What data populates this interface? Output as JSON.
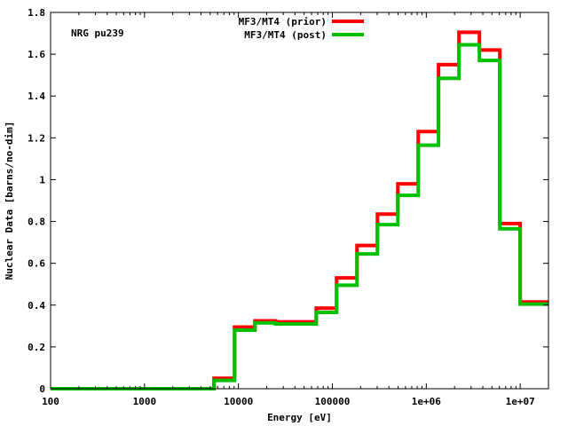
{
  "chart_data": {
    "type": "line",
    "step": true,
    "annotation": "NRG pu239",
    "xlabel": "Energy [eV]",
    "ylabel": "Nuclear Data [barns/no-dim]",
    "xscale": "log",
    "xlim": [
      100,
      20000000
    ],
    "ylim": [
      0,
      1.8
    ],
    "grid": false,
    "legend_position": "top-center",
    "xtick_labels": [
      "100",
      "1000",
      "10000",
      "100000",
      "1e+06",
      "1e+07"
    ],
    "xtick_values": [
      100,
      1000,
      10000,
      100000,
      1000000,
      10000000
    ],
    "ytick_labels": [
      "0",
      "0.2",
      "0.4",
      "0.6",
      "0.8",
      "1",
      "1.2",
      "1.4",
      "1.6",
      "1.8"
    ],
    "ytick_values": [
      0,
      0.2,
      0.4,
      0.6,
      0.8,
      1.0,
      1.2,
      1.4,
      1.6,
      1.8
    ],
    "bin_edges": [
      100,
      5500,
      9100,
      15000,
      24800,
      67400,
      111000,
      183000,
      302000,
      498000,
      821000,
      1350000,
      2230000,
      3680000,
      6070000,
      10000000,
      20000000
    ],
    "series": [
      {
        "name": "MF3/MT4 (prior)",
        "color": "#ff0000",
        "values": [
          0.0,
          0.05,
          0.295,
          0.325,
          0.32,
          0.385,
          0.53,
          0.685,
          0.835,
          0.98,
          1.23,
          1.55,
          1.705,
          1.62,
          0.79,
          0.415
        ]
      },
      {
        "name": "MF3/MT4 (post)",
        "color": "#00c000",
        "values": [
          0.0,
          0.04,
          0.28,
          0.315,
          0.31,
          0.365,
          0.495,
          0.645,
          0.785,
          0.925,
          1.165,
          1.485,
          1.645,
          1.57,
          0.765,
          0.405
        ]
      }
    ]
  }
}
